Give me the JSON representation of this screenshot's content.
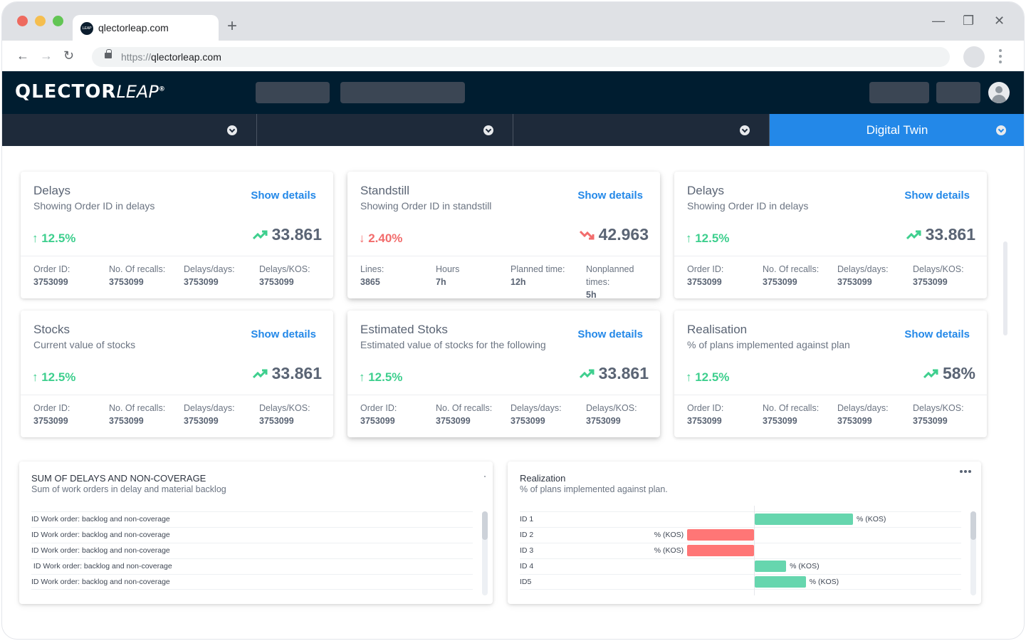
{
  "browser": {
    "tab_title": "qlectorleap.com",
    "favicon_text": "LEAP",
    "url_scheme": "https://",
    "url_host": "qlectorleap.com",
    "new_tab_icon": "+",
    "minimize_icon": "—",
    "restore_icon": "❐",
    "close_icon": "✕",
    "back_icon": "←",
    "forward_icon": "→",
    "reload_icon": "↻"
  },
  "app": {
    "logo_bold": "QLECTOR",
    "logo_light": "LEAP",
    "logo_mark": "®",
    "active_tab": "Digital Twin"
  },
  "colors": {
    "header": "#001d30",
    "subnav": "#1e2a3a",
    "accent": "#2388e8",
    "positive": "#3ecf8e",
    "negative": "#f26c6c",
    "bar_positive": "#66d6ae",
    "bar_negative": "#ff7676"
  },
  "cards": [
    {
      "title": "Delays",
      "subtitle": "Showing Order ID in delays",
      "link": "Show details",
      "trend": "up",
      "delta": "↑ 12.5%",
      "value": "33.861",
      "stats": [
        {
          "label": "Order ID:",
          "value": "3753099"
        },
        {
          "label": "No. Of recalls:",
          "value": "3753099"
        },
        {
          "label": "Delays/days:",
          "value": "3753099"
        },
        {
          "label": "Delays/KOS:",
          "value": "3753099"
        }
      ]
    },
    {
      "title": "Standstill",
      "subtitle": "Showing Order ID in standstill",
      "link": "Show details",
      "trend": "down",
      "delta": "↓ 2.40%",
      "value": "42.963",
      "stats": [
        {
          "label": "Lines:",
          "value": "3865"
        },
        {
          "label": "Hours",
          "value": "7h"
        },
        {
          "label": "Planned time:",
          "value": "12h"
        },
        {
          "label": "Nonplanned times:",
          "value": "5h"
        }
      ]
    },
    {
      "title": "Delays",
      "subtitle": "Showing Order ID in delays",
      "link": "Show details",
      "trend": "up",
      "delta": "↑ 12.5%",
      "value": "33.861",
      "stats": [
        {
          "label": "Order ID:",
          "value": "3753099"
        },
        {
          "label": "No. Of recalls:",
          "value": "3753099"
        },
        {
          "label": "Delays/days:",
          "value": "3753099"
        },
        {
          "label": "Delays/KOS:",
          "value": "3753099"
        }
      ]
    },
    {
      "title": "Stocks",
      "subtitle": "Current value of stocks",
      "link": "Show details",
      "trend": "up",
      "delta": "↑ 12.5%",
      "value": "33.861",
      "stats": [
        {
          "label": "Order ID:",
          "value": "3753099"
        },
        {
          "label": "No. Of recalls:",
          "value": "3753099"
        },
        {
          "label": "Delays/days:",
          "value": "3753099"
        },
        {
          "label": "Delays/KOS:",
          "value": "3753099"
        }
      ]
    },
    {
      "title": "Estimated Stoks",
      "subtitle": "Estimated value of stocks for the following",
      "link": "Show details",
      "trend": "up",
      "delta": "↑ 12.5%",
      "value": "33.861",
      "stats": [
        {
          "label": "Order ID:",
          "value": "3753099"
        },
        {
          "label": "No. Of recalls:",
          "value": "3753099"
        },
        {
          "label": "Delays/days:",
          "value": "3753099"
        },
        {
          "label": "Delays/KOS:",
          "value": "3753099"
        }
      ]
    },
    {
      "title": "Realisation",
      "subtitle": "% of plans implemented against plan",
      "link": "Show details",
      "trend": "up",
      "delta": "↑ 12.5%",
      "value": "58%",
      "stats": [
        {
          "label": "Order ID:",
          "value": "3753099"
        },
        {
          "label": "No. Of recalls:",
          "value": "3753099"
        },
        {
          "label": "Delays/days:",
          "value": "3753099"
        },
        {
          "label": "Delays/KOS:",
          "value": "3753099"
        }
      ]
    }
  ],
  "delays_panel": {
    "title": "SUM OF DELAYS AND NON-COVERAGE",
    "subtitle": "Sum of work orders in delay and material backlog",
    "rows": [
      "ID Work order: backlog and non-coverage",
      "ID Work order: backlog and non-coverage",
      "ID Work order: backlog and non-coverage",
      " ID Work order: backlog and non-coverage",
      "ID Work order: backlog and non-coverage"
    ]
  },
  "realization_panel": {
    "title": "Realization",
    "subtitle": "% of plans implemented against plan."
  },
  "chart_data": {
    "type": "bar",
    "orientation": "horizontal-diverging",
    "title": "Realization",
    "subtitle": "% of plans implemented against plan.",
    "categories": [
      "ID 1",
      "ID 2",
      "ID 3",
      "ID 4",
      "ID5"
    ],
    "values": [
      100,
      -68,
      -68,
      32,
      52
    ],
    "value_label": "% (KOS)",
    "xlim": [
      -100,
      100
    ]
  }
}
